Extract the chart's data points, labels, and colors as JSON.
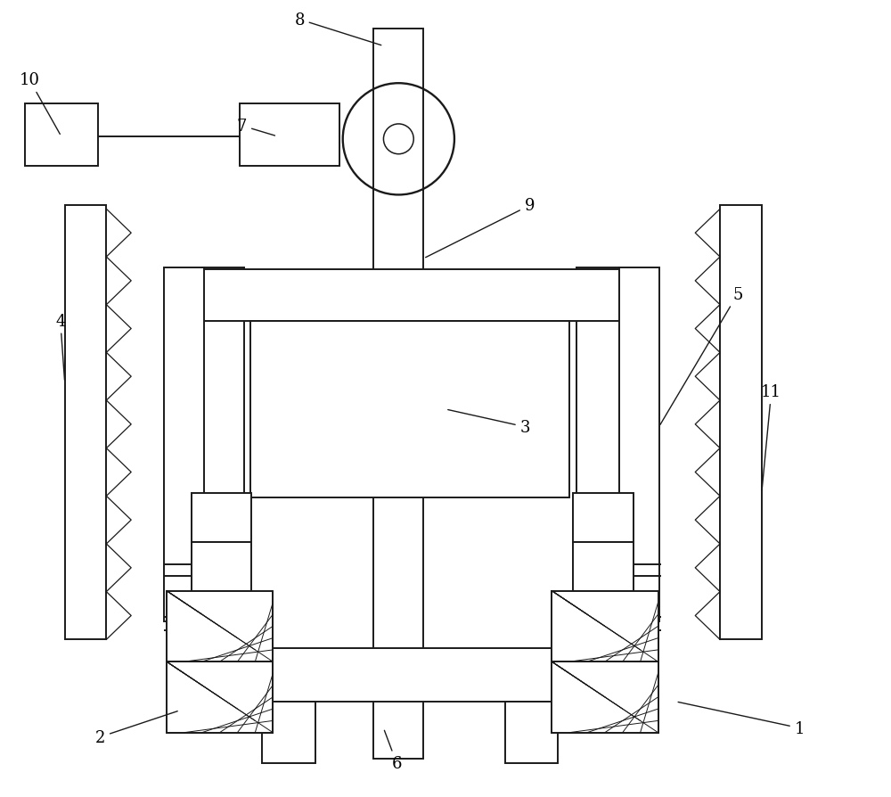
{
  "bg_color": "#ffffff",
  "line_color": "#1a1a1a",
  "lw": 1.4,
  "fig_w": 10.0,
  "fig_h": 8.95
}
